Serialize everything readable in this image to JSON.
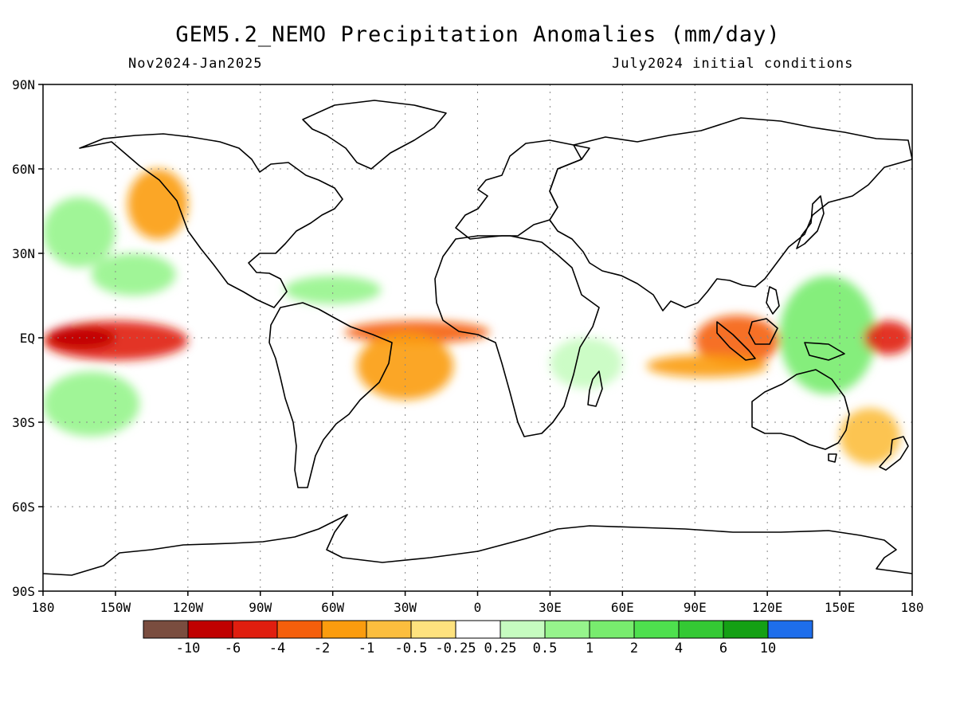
{
  "title": "GEM5.2_NEMO Precipitation Anomalies (mm/day)",
  "period": "Nov2024-Jan2025",
  "init": "July2024 initial conditions",
  "lat_ticks": [
    {
      "lat": 90,
      "label": "90N"
    },
    {
      "lat": 60,
      "label": "60N"
    },
    {
      "lat": 30,
      "label": "30N"
    },
    {
      "lat": 0,
      "label": "EQ"
    },
    {
      "lat": -30,
      "label": "30S"
    },
    {
      "lat": -60,
      "label": "60S"
    },
    {
      "lat": -90,
      "label": "90S"
    }
  ],
  "lon_ticks": [
    {
      "lon": 0,
      "label": "180"
    },
    {
      "lon": 30,
      "label": "150W"
    },
    {
      "lon": 60,
      "label": "120W"
    },
    {
      "lon": 90,
      "label": "90W"
    },
    {
      "lon": 120,
      "label": "60W"
    },
    {
      "lon": 150,
      "label": "30W"
    },
    {
      "lon": 180,
      "label": "0"
    },
    {
      "lon": 210,
      "label": "30E"
    },
    {
      "lon": 240,
      "label": "60E"
    },
    {
      "lon": 270,
      "label": "90E"
    },
    {
      "lon": 300,
      "label": "120E"
    },
    {
      "lon": 330,
      "label": "150E"
    },
    {
      "lon": 360,
      "label": "180"
    }
  ],
  "colorbar": {
    "colors": [
      "#7a4d3f",
      "#c00000",
      "#e01e0f",
      "#f55f0c",
      "#fb9c0e",
      "#fcbe3e",
      "#fee27e",
      "#ffffff",
      "#c6fcc0",
      "#96f48c",
      "#78ec6e",
      "#4ee04e",
      "#34c934",
      "#14a014",
      "#1e6eeb"
    ],
    "labels": [
      "-10",
      "-6",
      "-4",
      "-2",
      "-1",
      "-0.5",
      "-0.25",
      "0.25",
      "0.5",
      "1",
      "2",
      "4",
      "6",
      "10"
    ]
  },
  "anomaly_regions": [
    {
      "name": "Central Pacific equatorial dry belt",
      "lon": [
        0,
        60
      ],
      "lat": [
        -8,
        6
      ],
      "level": -4
    },
    {
      "name": "Central Pacific core dry",
      "lon": [
        2,
        30
      ],
      "lat": [
        -4,
        4
      ],
      "level": -6
    },
    {
      "name": "Equatorial Atlantic dry belt",
      "lon": [
        125,
        185
      ],
      "lat": [
        -2,
        6
      ],
      "level": -2
    },
    {
      "name": "Amazon dry",
      "lon": [
        130,
        170
      ],
      "lat": [
        -22,
        2
      ],
      "level": -1
    },
    {
      "name": "Maritime Continent dry",
      "lon": [
        270,
        305
      ],
      "lat": [
        -10,
        8
      ],
      "level": -2
    },
    {
      "name": "Indian Ocean dry band",
      "lon": [
        250,
        300
      ],
      "lat": [
        -14,
        -6
      ],
      "level": -1
    },
    {
      "name": "West Pacific wet",
      "lon": [
        305,
        345
      ],
      "lat": [
        -20,
        22
      ],
      "level": 2
    },
    {
      "name": "Far west Pacific dry",
      "lon": [
        340,
        360
      ],
      "lat": [
        -6,
        6
      ],
      "level": -4
    },
    {
      "name": "North Pacific wet",
      "lon": [
        0,
        30
      ],
      "lat": [
        25,
        50
      ],
      "level": 1
    },
    {
      "name": "Subtropical Pacific wet",
      "lon": [
        20,
        55
      ],
      "lat": [
        15,
        30
      ],
      "level": 1
    },
    {
      "name": "Alaska coast dry",
      "lon": [
        35,
        60
      ],
      "lat": [
        35,
        60
      ],
      "level": -1
    },
    {
      "name": "Caribbean wet",
      "lon": [
        100,
        140
      ],
      "lat": [
        12,
        22
      ],
      "level": 1
    },
    {
      "name": "East Africa wet",
      "lon": [
        210,
        240
      ],
      "lat": [
        -18,
        0
      ],
      "level": 0.5
    },
    {
      "name": "South Pacific wet",
      "lon": [
        0,
        40
      ],
      "lat": [
        -35,
        -12
      ],
      "level": 1
    },
    {
      "name": "Australia east dry",
      "lon": [
        330,
        355
      ],
      "lat": [
        -45,
        -25
      ],
      "level": -0.5
    }
  ]
}
